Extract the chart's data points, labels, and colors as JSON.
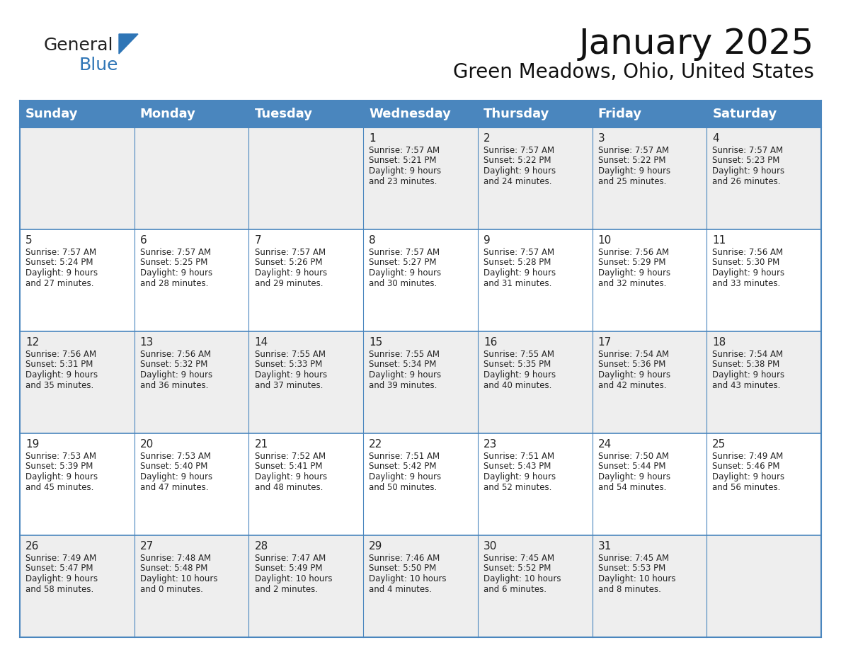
{
  "title": "January 2025",
  "subtitle": "Green Meadows, Ohio, United States",
  "header_color": "#4a86be",
  "header_text_color": "#ffffff",
  "row_bg_gray": "#eeeeee",
  "row_bg_white": "#ffffff",
  "border_color": "#4a86be",
  "text_color": "#222222",
  "days_of_week": [
    "Sunday",
    "Monday",
    "Tuesday",
    "Wednesday",
    "Thursday",
    "Friday",
    "Saturday"
  ],
  "title_fontsize": 36,
  "subtitle_fontsize": 20,
  "header_fontsize": 13,
  "day_num_fontsize": 11,
  "cell_fontsize": 8.5,
  "logo_general_color": "#222222",
  "logo_blue_color": "#2e75b6",
  "calendar_data": [
    [
      {
        "day": "",
        "lines": []
      },
      {
        "day": "",
        "lines": []
      },
      {
        "day": "",
        "lines": []
      },
      {
        "day": "1",
        "lines": [
          "Sunrise: 7:57 AM",
          "Sunset: 5:21 PM",
          "Daylight: 9 hours",
          "and 23 minutes."
        ]
      },
      {
        "day": "2",
        "lines": [
          "Sunrise: 7:57 AM",
          "Sunset: 5:22 PM",
          "Daylight: 9 hours",
          "and 24 minutes."
        ]
      },
      {
        "day": "3",
        "lines": [
          "Sunrise: 7:57 AM",
          "Sunset: 5:22 PM",
          "Daylight: 9 hours",
          "and 25 minutes."
        ]
      },
      {
        "day": "4",
        "lines": [
          "Sunrise: 7:57 AM",
          "Sunset: 5:23 PM",
          "Daylight: 9 hours",
          "and 26 minutes."
        ]
      }
    ],
    [
      {
        "day": "5",
        "lines": [
          "Sunrise: 7:57 AM",
          "Sunset: 5:24 PM",
          "Daylight: 9 hours",
          "and 27 minutes."
        ]
      },
      {
        "day": "6",
        "lines": [
          "Sunrise: 7:57 AM",
          "Sunset: 5:25 PM",
          "Daylight: 9 hours",
          "and 28 minutes."
        ]
      },
      {
        "day": "7",
        "lines": [
          "Sunrise: 7:57 AM",
          "Sunset: 5:26 PM",
          "Daylight: 9 hours",
          "and 29 minutes."
        ]
      },
      {
        "day": "8",
        "lines": [
          "Sunrise: 7:57 AM",
          "Sunset: 5:27 PM",
          "Daylight: 9 hours",
          "and 30 minutes."
        ]
      },
      {
        "day": "9",
        "lines": [
          "Sunrise: 7:57 AM",
          "Sunset: 5:28 PM",
          "Daylight: 9 hours",
          "and 31 minutes."
        ]
      },
      {
        "day": "10",
        "lines": [
          "Sunrise: 7:56 AM",
          "Sunset: 5:29 PM",
          "Daylight: 9 hours",
          "and 32 minutes."
        ]
      },
      {
        "day": "11",
        "lines": [
          "Sunrise: 7:56 AM",
          "Sunset: 5:30 PM",
          "Daylight: 9 hours",
          "and 33 minutes."
        ]
      }
    ],
    [
      {
        "day": "12",
        "lines": [
          "Sunrise: 7:56 AM",
          "Sunset: 5:31 PM",
          "Daylight: 9 hours",
          "and 35 minutes."
        ]
      },
      {
        "day": "13",
        "lines": [
          "Sunrise: 7:56 AM",
          "Sunset: 5:32 PM",
          "Daylight: 9 hours",
          "and 36 minutes."
        ]
      },
      {
        "day": "14",
        "lines": [
          "Sunrise: 7:55 AM",
          "Sunset: 5:33 PM",
          "Daylight: 9 hours",
          "and 37 minutes."
        ]
      },
      {
        "day": "15",
        "lines": [
          "Sunrise: 7:55 AM",
          "Sunset: 5:34 PM",
          "Daylight: 9 hours",
          "and 39 minutes."
        ]
      },
      {
        "day": "16",
        "lines": [
          "Sunrise: 7:55 AM",
          "Sunset: 5:35 PM",
          "Daylight: 9 hours",
          "and 40 minutes."
        ]
      },
      {
        "day": "17",
        "lines": [
          "Sunrise: 7:54 AM",
          "Sunset: 5:36 PM",
          "Daylight: 9 hours",
          "and 42 minutes."
        ]
      },
      {
        "day": "18",
        "lines": [
          "Sunrise: 7:54 AM",
          "Sunset: 5:38 PM",
          "Daylight: 9 hours",
          "and 43 minutes."
        ]
      }
    ],
    [
      {
        "day": "19",
        "lines": [
          "Sunrise: 7:53 AM",
          "Sunset: 5:39 PM",
          "Daylight: 9 hours",
          "and 45 minutes."
        ]
      },
      {
        "day": "20",
        "lines": [
          "Sunrise: 7:53 AM",
          "Sunset: 5:40 PM",
          "Daylight: 9 hours",
          "and 47 minutes."
        ]
      },
      {
        "day": "21",
        "lines": [
          "Sunrise: 7:52 AM",
          "Sunset: 5:41 PM",
          "Daylight: 9 hours",
          "and 48 minutes."
        ]
      },
      {
        "day": "22",
        "lines": [
          "Sunrise: 7:51 AM",
          "Sunset: 5:42 PM",
          "Daylight: 9 hours",
          "and 50 minutes."
        ]
      },
      {
        "day": "23",
        "lines": [
          "Sunrise: 7:51 AM",
          "Sunset: 5:43 PM",
          "Daylight: 9 hours",
          "and 52 minutes."
        ]
      },
      {
        "day": "24",
        "lines": [
          "Sunrise: 7:50 AM",
          "Sunset: 5:44 PM",
          "Daylight: 9 hours",
          "and 54 minutes."
        ]
      },
      {
        "day": "25",
        "lines": [
          "Sunrise: 7:49 AM",
          "Sunset: 5:46 PM",
          "Daylight: 9 hours",
          "and 56 minutes."
        ]
      }
    ],
    [
      {
        "day": "26",
        "lines": [
          "Sunrise: 7:49 AM",
          "Sunset: 5:47 PM",
          "Daylight: 9 hours",
          "and 58 minutes."
        ]
      },
      {
        "day": "27",
        "lines": [
          "Sunrise: 7:48 AM",
          "Sunset: 5:48 PM",
          "Daylight: 10 hours",
          "and 0 minutes."
        ]
      },
      {
        "day": "28",
        "lines": [
          "Sunrise: 7:47 AM",
          "Sunset: 5:49 PM",
          "Daylight: 10 hours",
          "and 2 minutes."
        ]
      },
      {
        "day": "29",
        "lines": [
          "Sunrise: 7:46 AM",
          "Sunset: 5:50 PM",
          "Daylight: 10 hours",
          "and 4 minutes."
        ]
      },
      {
        "day": "30",
        "lines": [
          "Sunrise: 7:45 AM",
          "Sunset: 5:52 PM",
          "Daylight: 10 hours",
          "and 6 minutes."
        ]
      },
      {
        "day": "31",
        "lines": [
          "Sunrise: 7:45 AM",
          "Sunset: 5:53 PM",
          "Daylight: 10 hours",
          "and 8 minutes."
        ]
      },
      {
        "day": "",
        "lines": []
      }
    ]
  ]
}
